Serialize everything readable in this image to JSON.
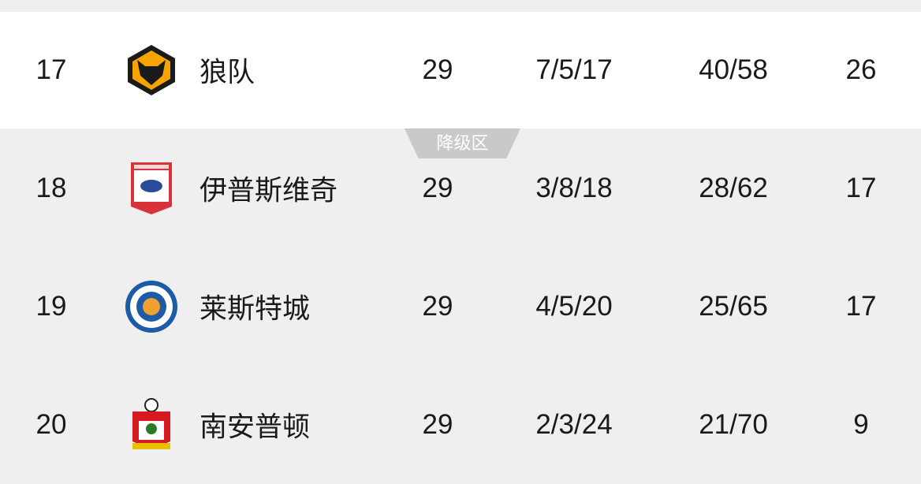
{
  "zone_label": "降级区",
  "rows": [
    {
      "rank": "17",
      "team": "狼队",
      "logo": "wolves-crest-icon",
      "played": "29",
      "wdl": "7/5/17",
      "goals": "40/58",
      "points": "26"
    },
    {
      "rank": "18",
      "team": "伊普斯维奇",
      "logo": "ipswich-crest-icon",
      "played": "29",
      "wdl": "3/8/18",
      "goals": "28/62",
      "points": "17"
    },
    {
      "rank": "19",
      "team": "莱斯特城",
      "logo": "leicester-crest-icon",
      "played": "29",
      "wdl": "4/5/20",
      "goals": "25/65",
      "points": "17"
    },
    {
      "rank": "20",
      "team": "南安普顿",
      "logo": "southampton-crest-icon",
      "played": "29",
      "wdl": "2/3/24",
      "goals": "21/70",
      "points": "9"
    }
  ]
}
